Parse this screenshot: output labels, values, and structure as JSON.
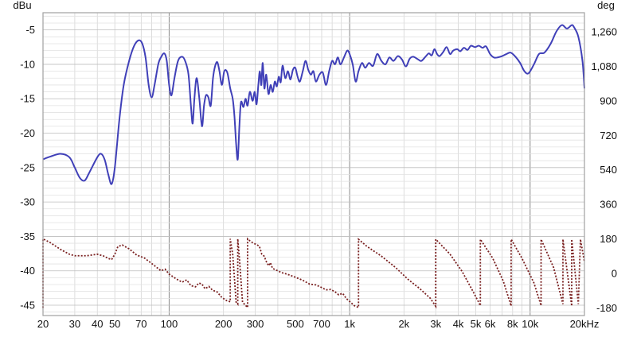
{
  "chart_data": {
    "type": "line",
    "title": "",
    "x_axis": {
      "scale": "log",
      "range": [
        20,
        20000
      ],
      "unit_label": "Hz",
      "tick_values": [
        20,
        30,
        40,
        50,
        70,
        100,
        200,
        300,
        500,
        700,
        1000,
        2000,
        3000,
        4000,
        5000,
        6000,
        8000,
        10000,
        20000
      ],
      "tick_labels": [
        "20",
        "30",
        "40",
        "50",
        "70",
        "100",
        "200",
        "300",
        "500",
        "700",
        "1k",
        "2k",
        "3k",
        "4k",
        "5k",
        "6k",
        "8k",
        "10k",
        "20kHz"
      ]
    },
    "y_left": {
      "label": "dBu",
      "range": [
        -46.5,
        -2.5
      ],
      "tick_values": [
        -5,
        -10,
        -15,
        -20,
        -25,
        -30,
        -35,
        -40,
        -45
      ],
      "tick_labels": [
        "-5",
        "-10",
        "-15",
        "-20",
        "-25",
        "-30",
        "-35",
        "-40",
        "-45"
      ]
    },
    "y_right": {
      "label": "deg",
      "range": [
        -220,
        1360
      ],
      "tick_values": [
        1260,
        1080,
        900,
        720,
        540,
        360,
        180,
        0,
        -180
      ],
      "tick_labels": [
        "1,260",
        "1,080",
        "900",
        "720",
        "540",
        "360",
        "180",
        "0",
        "-180"
      ]
    },
    "grid": true,
    "colors": {
      "magnitude": "#4040b8",
      "phase": "#7a2020",
      "grid_minor": "#d4d4d4",
      "grid_major": "#8a8a8a",
      "plot_border": "#a0a0a0"
    },
    "series": [
      {
        "key": "magnitude",
        "axis": "left",
        "style": "solid",
        "points": [
          [
            20,
            -23.8
          ],
          [
            22,
            -23.4
          ],
          [
            25,
            -23.0
          ],
          [
            28,
            -23.5
          ],
          [
            30,
            -25.0
          ],
          [
            32,
            -26.5
          ],
          [
            34,
            -26.9
          ],
          [
            36,
            -25.8
          ],
          [
            40,
            -23.5
          ],
          [
            42,
            -23.0
          ],
          [
            44,
            -23.9
          ],
          [
            46,
            -26.0
          ],
          [
            48,
            -27.4
          ],
          [
            50,
            -25.0
          ],
          [
            53,
            -18.0
          ],
          [
            56,
            -13.0
          ],
          [
            60,
            -9.5
          ],
          [
            64,
            -7.3
          ],
          [
            68,
            -6.5
          ],
          [
            71,
            -7.0
          ],
          [
            74,
            -9.0
          ],
          [
            77,
            -13.0
          ],
          [
            80,
            -14.8
          ],
          [
            83,
            -13.0
          ],
          [
            87,
            -10.0
          ],
          [
            90,
            -9.0
          ],
          [
            94,
            -8.4
          ],
          [
            97,
            -9.5
          ],
          [
            100,
            -13.0
          ],
          [
            103,
            -14.5
          ],
          [
            107,
            -12.0
          ],
          [
            112,
            -9.5
          ],
          [
            118,
            -8.9
          ],
          [
            123,
            -9.6
          ],
          [
            128,
            -11.5
          ],
          [
            132,
            -16.0
          ],
          [
            135,
            -18.6
          ],
          [
            138,
            -15.0
          ],
          [
            142,
            -12.0
          ],
          [
            147,
            -15.0
          ],
          [
            152,
            -19.0
          ],
          [
            156,
            -16.0
          ],
          [
            160,
            -14.5
          ],
          [
            165,
            -14.8
          ],
          [
            170,
            -16.0
          ],
          [
            175,
            -12.0
          ],
          [
            180,
            -10.2
          ],
          [
            185,
            -9.7
          ],
          [
            190,
            -11.0
          ],
          [
            196,
            -13.0
          ],
          [
            202,
            -11.0
          ],
          [
            210,
            -11.2
          ],
          [
            218,
            -13.5
          ],
          [
            225,
            -15.0
          ],
          [
            230,
            -17.5
          ],
          [
            235,
            -21.5
          ],
          [
            240,
            -23.8
          ],
          [
            245,
            -19.0
          ],
          [
            250,
            -15.5
          ],
          [
            258,
            -16.2
          ],
          [
            265,
            -15.0
          ],
          [
            272,
            -16.0
          ],
          [
            280,
            -14.0
          ],
          [
            290,
            -15.3
          ],
          [
            298,
            -14.0
          ],
          [
            305,
            -15.8
          ],
          [
            312,
            -13.0
          ],
          [
            318,
            -11.0
          ],
          [
            324,
            -13.0
          ],
          [
            330,
            -9.8
          ],
          [
            337,
            -13.5
          ],
          [
            345,
            -11.5
          ],
          [
            355,
            -14.3
          ],
          [
            365,
            -13.0
          ],
          [
            375,
            -14.0
          ],
          [
            385,
            -12.5
          ],
          [
            395,
            -13.2
          ],
          [
            405,
            -11.8
          ],
          [
            415,
            -12.6
          ],
          [
            425,
            -10.2
          ],
          [
            440,
            -12.0
          ],
          [
            455,
            -11.0
          ],
          [
            470,
            -12.2
          ],
          [
            485,
            -10.8
          ],
          [
            500,
            -10.5
          ],
          [
            515,
            -11.8
          ],
          [
            530,
            -12.5
          ],
          [
            550,
            -11.0
          ],
          [
            570,
            -9.5
          ],
          [
            590,
            -10.8
          ],
          [
            610,
            -11.5
          ],
          [
            630,
            -11.0
          ],
          [
            650,
            -12.5
          ],
          [
            680,
            -11.5
          ],
          [
            710,
            -11.2
          ],
          [
            740,
            -13.0
          ],
          [
            770,
            -11.0
          ],
          [
            800,
            -9.5
          ],
          [
            830,
            -10.0
          ],
          [
            860,
            -9.0
          ],
          [
            890,
            -10.0
          ],
          [
            930,
            -9.0
          ],
          [
            970,
            -8.0
          ],
          [
            1000,
            -8.5
          ],
          [
            1040,
            -10.0
          ],
          [
            1080,
            -12.5
          ],
          [
            1120,
            -11.0
          ],
          [
            1170,
            -9.8
          ],
          [
            1220,
            -10.5
          ],
          [
            1280,
            -9.8
          ],
          [
            1350,
            -10.2
          ],
          [
            1420,
            -8.5
          ],
          [
            1500,
            -9.5
          ],
          [
            1580,
            -10.0
          ],
          [
            1660,
            -9.0
          ],
          [
            1750,
            -9.5
          ],
          [
            1850,
            -8.8
          ],
          [
            1950,
            -9.3
          ],
          [
            2050,
            -10.3
          ],
          [
            2150,
            -9.2
          ],
          [
            2250,
            -8.9
          ],
          [
            2400,
            -9.3
          ],
          [
            2500,
            -9.5
          ],
          [
            2650,
            -8.8
          ],
          [
            2750,
            -8.4
          ],
          [
            2850,
            -8.7
          ],
          [
            2950,
            -7.8
          ],
          [
            3050,
            -8.5
          ],
          [
            3150,
            -8.8
          ],
          [
            3300,
            -8.2
          ],
          [
            3450,
            -7.5
          ],
          [
            3600,
            -8.5
          ],
          [
            3750,
            -8.0
          ],
          [
            3950,
            -7.8
          ],
          [
            4100,
            -8.1
          ],
          [
            4300,
            -7.6
          ],
          [
            4500,
            -7.9
          ],
          [
            4700,
            -7.3
          ],
          [
            4950,
            -7.5
          ],
          [
            5200,
            -7.3
          ],
          [
            5450,
            -7.6
          ],
          [
            5700,
            -7.4
          ],
          [
            6000,
            -8.5
          ],
          [
            6300,
            -9.0
          ],
          [
            6600,
            -9.0
          ],
          [
            7000,
            -8.8
          ],
          [
            7400,
            -8.5
          ],
          [
            7800,
            -8.3
          ],
          [
            8300,
            -8.9
          ],
          [
            8800,
            -9.8
          ],
          [
            9300,
            -11.0
          ],
          [
            9800,
            -11.3
          ],
          [
            10500,
            -10.0
          ],
          [
            11200,
            -8.5
          ],
          [
            12000,
            -8.3
          ],
          [
            13000,
            -7.0
          ],
          [
            14000,
            -5.2
          ],
          [
            15000,
            -4.3
          ],
          [
            16000,
            -4.8
          ],
          [
            17000,
            -4.3
          ],
          [
            17500,
            -4.6
          ],
          [
            18500,
            -6.0
          ],
          [
            19500,
            -9.5
          ],
          [
            20000,
            -13.5
          ]
        ]
      },
      {
        "key": "phase",
        "axis": "right",
        "style": "dotted",
        "points": [
          [
            20,
            -180
          ],
          [
            20,
            180
          ],
          [
            22,
            160
          ],
          [
            25,
            125
          ],
          [
            28,
            100
          ],
          [
            30,
            92
          ],
          [
            35,
            92
          ],
          [
            40,
            100
          ],
          [
            43,
            92
          ],
          [
            46,
            78
          ],
          [
            48,
            72
          ],
          [
            50,
            100
          ],
          [
            52,
            140
          ],
          [
            55,
            148
          ],
          [
            60,
            128
          ],
          [
            66,
            96
          ],
          [
            73,
            80
          ],
          [
            82,
            44
          ],
          [
            90,
            14
          ],
          [
            95,
            22
          ],
          [
            100,
            -4
          ],
          [
            110,
            -30
          ],
          [
            118,
            -46
          ],
          [
            125,
            -34
          ],
          [
            132,
            -64
          ],
          [
            140,
            -70
          ],
          [
            146,
            -50
          ],
          [
            152,
            -56
          ],
          [
            158,
            -80
          ],
          [
            166,
            -68
          ],
          [
            174,
            -88
          ],
          [
            184,
            -96
          ],
          [
            196,
            -126
          ],
          [
            208,
            -142
          ],
          [
            218,
            -148
          ],
          [
            218,
            180
          ],
          [
            225,
            100
          ],
          [
            235,
            -150
          ],
          [
            240,
            -160
          ],
          [
            240,
            180
          ],
          [
            245,
            80
          ],
          [
            255,
            -150
          ],
          [
            272,
            -178
          ],
          [
            272,
            180
          ],
          [
            280,
            170
          ],
          [
            290,
            160
          ],
          [
            305,
            150
          ],
          [
            316,
            142
          ],
          [
            326,
            100
          ],
          [
            336,
            90
          ],
          [
            346,
            60
          ],
          [
            356,
            40
          ],
          [
            364,
            56
          ],
          [
            374,
            26
          ],
          [
            394,
            16
          ],
          [
            420,
            4
          ],
          [
            450,
            -4
          ],
          [
            500,
            -20
          ],
          [
            550,
            -36
          ],
          [
            600,
            -56
          ],
          [
            650,
            -60
          ],
          [
            700,
            -74
          ],
          [
            740,
            -86
          ],
          [
            785,
            -84
          ],
          [
            830,
            -96
          ],
          [
            870,
            -112
          ],
          [
            915,
            -104
          ],
          [
            960,
            -132
          ],
          [
            1010,
            -150
          ],
          [
            1060,
            -168
          ],
          [
            1120,
            -178
          ],
          [
            1120,
            178
          ],
          [
            1250,
            140
          ],
          [
            1500,
            90
          ],
          [
            1800,
            30
          ],
          [
            2100,
            -30
          ],
          [
            2450,
            -80
          ],
          [
            2800,
            -130
          ],
          [
            3000,
            -172
          ],
          [
            3000,
            178
          ],
          [
            3600,
            100
          ],
          [
            4200,
            10
          ],
          [
            4800,
            -90
          ],
          [
            5300,
            -168
          ],
          [
            5300,
            178
          ],
          [
            6200,
            80
          ],
          [
            7100,
            -40
          ],
          [
            7850,
            -170
          ],
          [
            7850,
            178
          ],
          [
            9000,
            80
          ],
          [
            10500,
            -50
          ],
          [
            11500,
            -168
          ],
          [
            11500,
            178
          ],
          [
            13500,
            30
          ],
          [
            15200,
            -160
          ],
          [
            15200,
            178
          ],
          [
            17000,
            -170
          ],
          [
            17000,
            178
          ],
          [
            18500,
            -160
          ],
          [
            19000,
            178
          ],
          [
            20000,
            60
          ]
        ]
      }
    ]
  }
}
